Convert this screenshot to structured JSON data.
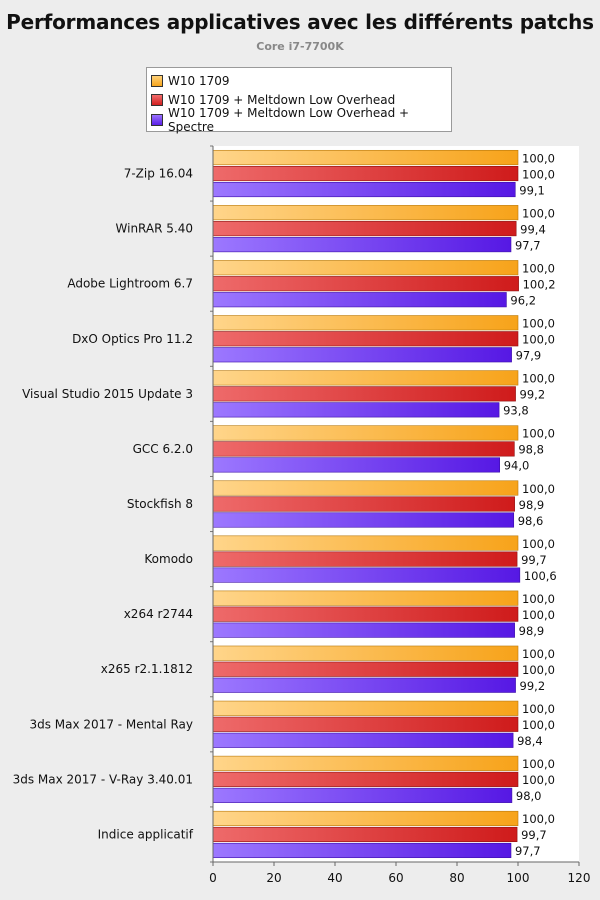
{
  "chart_data": {
    "type": "bar",
    "orientation": "horizontal",
    "title": "Performances applicatives avec les différents patchs",
    "subtitle": "Core i7-7700K",
    "categories": [
      "7-Zip 16.04",
      "WinRAR 5.40",
      "Adobe Lightroom 6.7",
      "DxO Optics Pro 11.2",
      "Visual Studio 2015 Update 3",
      "GCC 6.2.0",
      "Stockfish 8",
      "Komodo",
      "x264 r2744",
      "x265 r2.1.1812",
      "3ds Max 2017 - Mental Ray",
      "3ds Max 2017 - V-Ray 3.40.01",
      "Indice applicatif"
    ],
    "series": [
      {
        "name": "W10 1709",
        "color": "#f9a825",
        "values": [
          100.0,
          100.0,
          100.0,
          100.0,
          100.0,
          100.0,
          100.0,
          100.0,
          100.0,
          100.0,
          100.0,
          100.0,
          100.0
        ],
        "labels": [
          "100,0",
          "100,0",
          "100,0",
          "100,0",
          "100,0",
          "100,0",
          "100,0",
          "100,0",
          "100,0",
          "100,0",
          "100,0",
          "100,0",
          "100,0"
        ]
      },
      {
        "name": "W10 1709 + Meltdown Low Overhead",
        "color": "#d32f2f",
        "values": [
          100.0,
          99.4,
          100.2,
          100.0,
          99.2,
          98.8,
          98.9,
          99.7,
          100.0,
          100.0,
          100.0,
          100.0,
          99.7
        ],
        "labels": [
          "100,0",
          "99,4",
          "100,2",
          "100,0",
          "99,2",
          "98,8",
          "98,9",
          "99,7",
          "100,0",
          "100,0",
          "100,0",
          "100,0",
          "99,7"
        ]
      },
      {
        "name": "W10 1709 + Meltdown Low Overhead + Spectre",
        "color": "#6a2ff0",
        "values": [
          99.1,
          97.7,
          96.2,
          97.9,
          93.8,
          94.0,
          98.6,
          100.6,
          98.9,
          99.2,
          98.4,
          98.0,
          97.7
        ],
        "labels": [
          "99,1",
          "97,7",
          "96,2",
          "97,9",
          "93,8",
          "94,0",
          "98,6",
          "100,6",
          "98,9",
          "99,2",
          "98,4",
          "98,0",
          "97,7"
        ]
      }
    ],
    "xlim": [
      0,
      120
    ],
    "xticks": [
      "0",
      "20",
      "40",
      "60",
      "80",
      "100",
      "120"
    ],
    "legend_position": "top-left",
    "grid": false
  }
}
